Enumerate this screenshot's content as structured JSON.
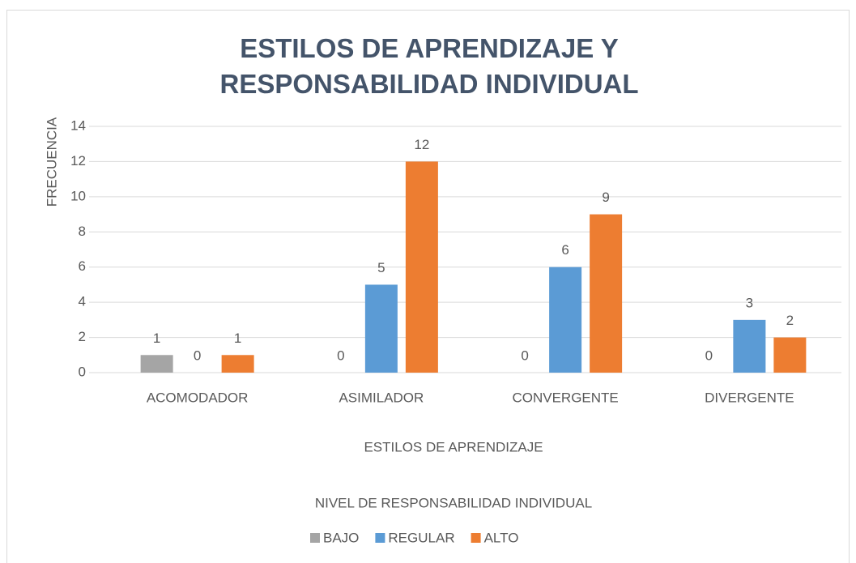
{
  "chart_data": {
    "type": "bar",
    "title": "ESTILOS DE APRENDIZAJE Y RESPONSABILIDAD INDIVIDUAL",
    "x_label": "ESTILOS DE APRENDIZAJE",
    "y_label": "FRECUENCIA",
    "legend_title": "NIVEL DE RESPONSABILIDAD INDIVIDUAL",
    "legend_position": "bottom",
    "categories": [
      "ACOMODADOR",
      "ASIMILADOR",
      "CONVERGENTE",
      "DIVERGENTE"
    ],
    "series": [
      {
        "name": "BAJO",
        "color": "#a5a5a5",
        "values": [
          1,
          0,
          0,
          0
        ]
      },
      {
        "name": "REGULAR",
        "color": "#5b9bd5",
        "values": [
          0,
          5,
          6,
          3
        ]
      },
      {
        "name": "ALTO",
        "color": "#ed7d31",
        "values": [
          1,
          12,
          9,
          2
        ]
      }
    ],
    "ylim": [
      0,
      14
    ],
    "yticks": [
      0,
      2,
      4,
      6,
      8,
      10,
      12,
      14
    ],
    "grid": true
  }
}
